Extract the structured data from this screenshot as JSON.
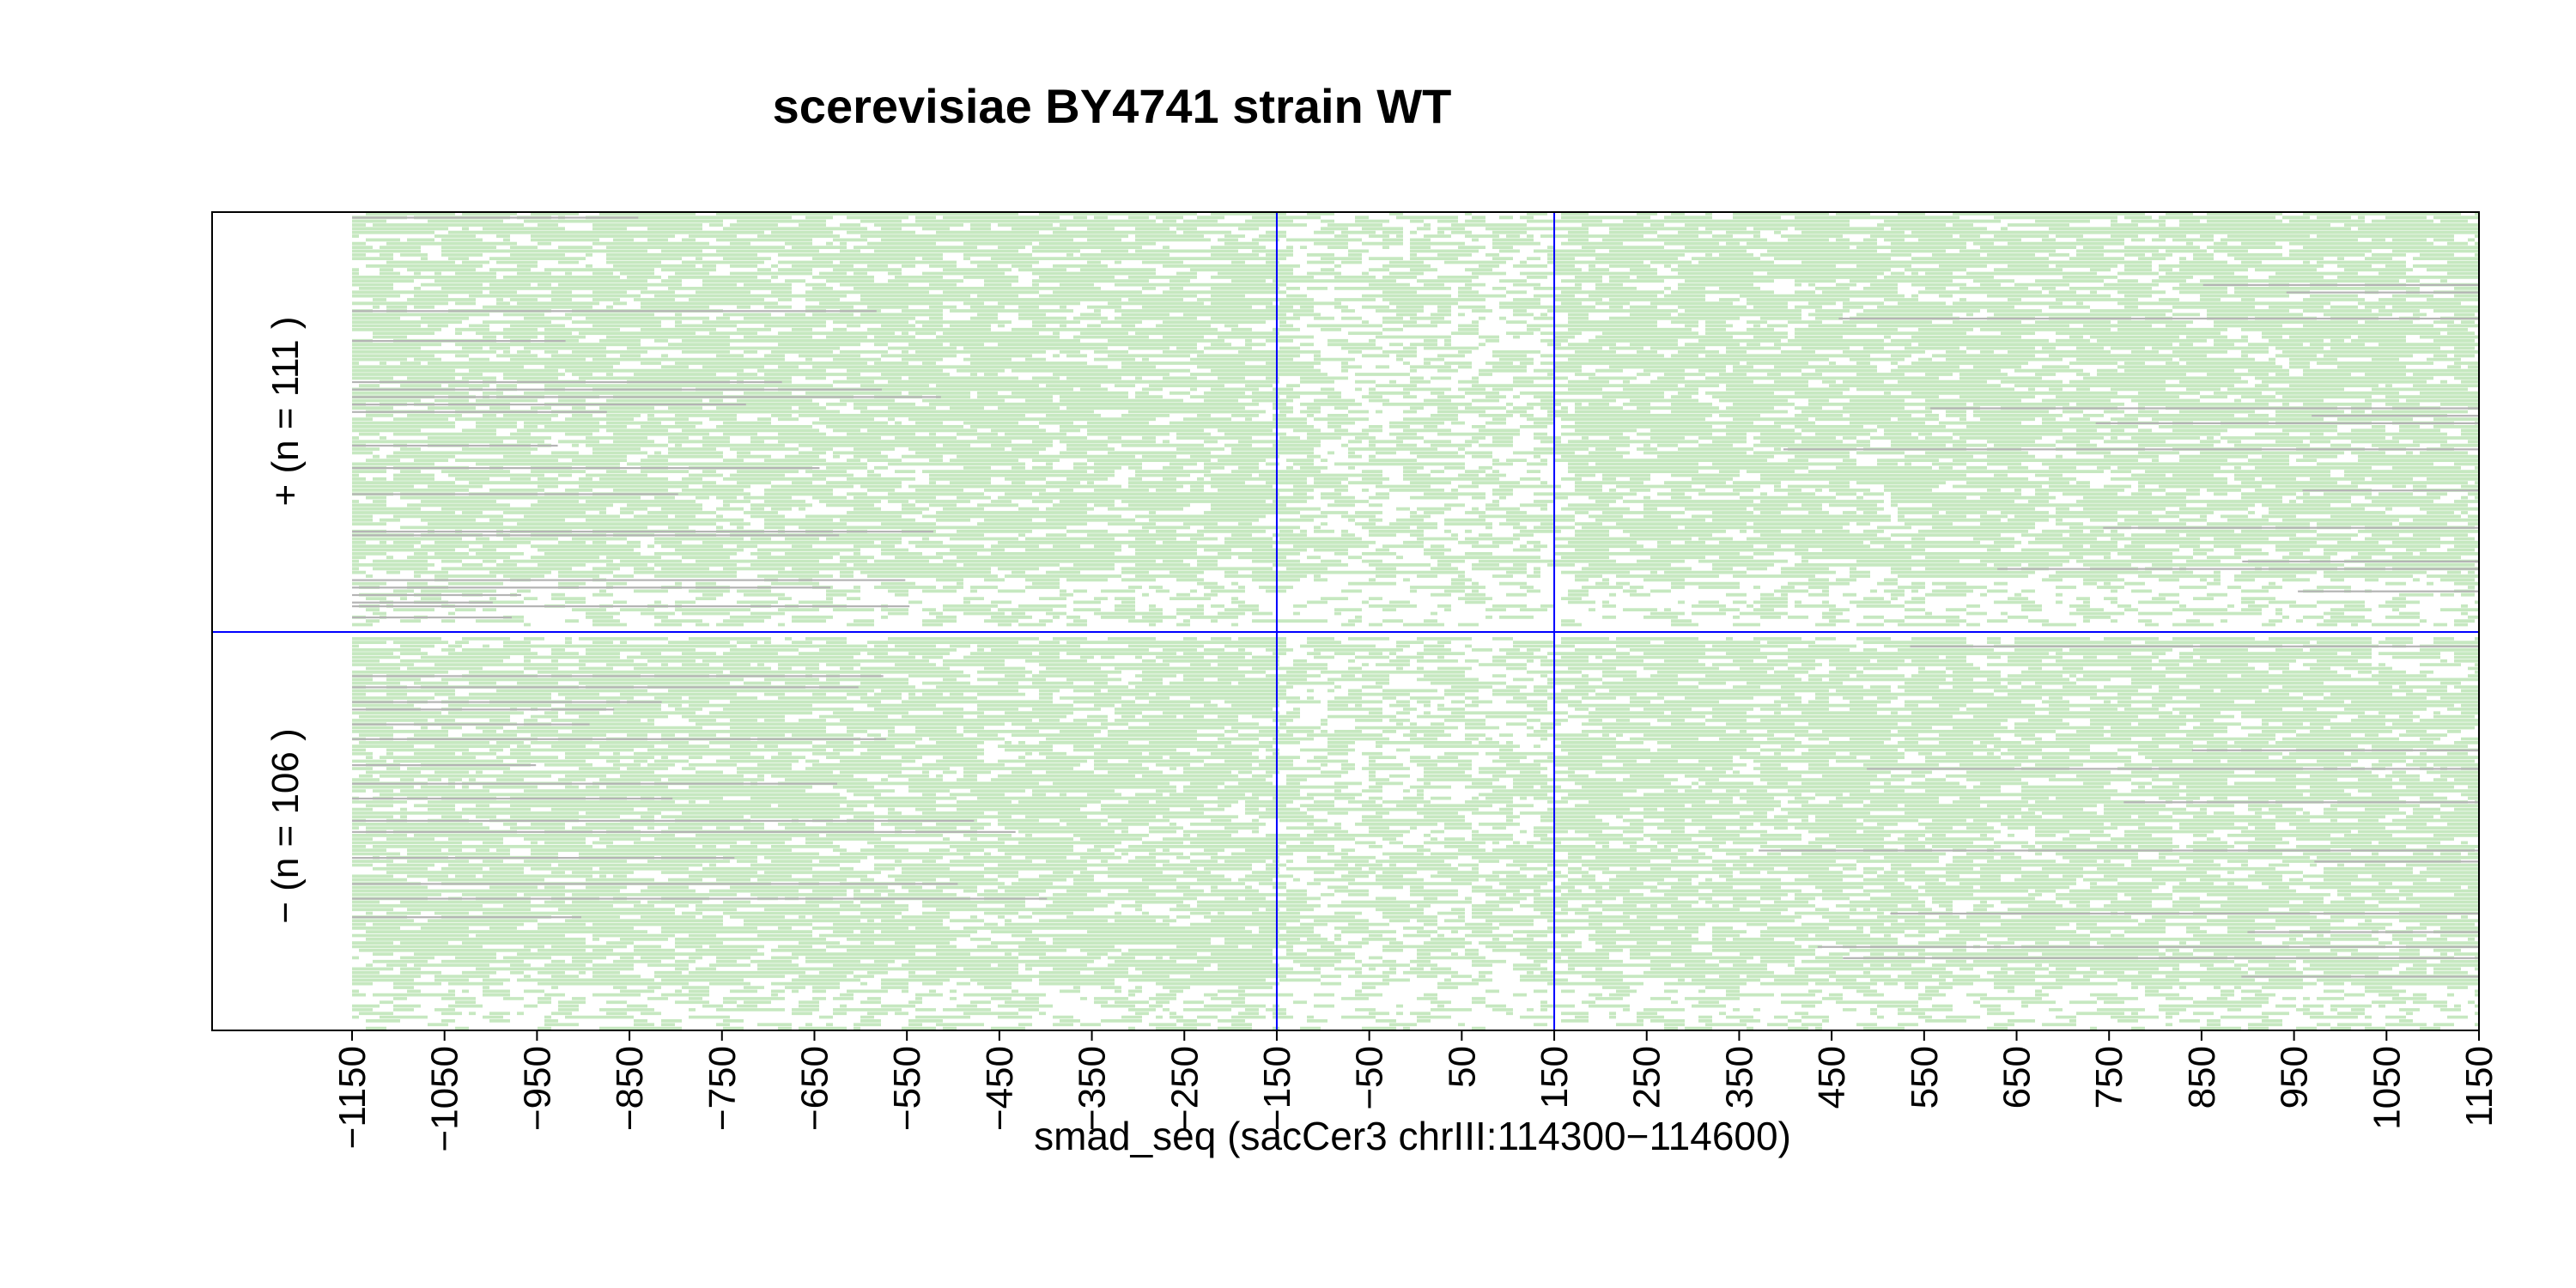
{
  "chart_data": {
    "type": "heatmap",
    "title": "scerevisiae BY4741 strain WT",
    "xlabel": "smad_seq (sacCer3 chrIII:114300−114600)",
    "ylabel": "",
    "xlim": [
      -1150,
      1150
    ],
    "x_ticks": [
      -1150,
      -1050,
      -950,
      -850,
      -750,
      -650,
      -550,
      -450,
      -350,
      -250,
      -150,
      -50,
      50,
      150,
      250,
      350,
      450,
      550,
      650,
      750,
      850,
      950,
      1050,
      1150
    ],
    "x_tick_labels": [
      "−1150",
      "−1050",
      "−950",
      "−850",
      "−750",
      "−650",
      "−550",
      "−450",
      "−350",
      "−250",
      "−150",
      "−50",
      "50",
      "150",
      "250",
      "350",
      "450",
      "550",
      "650",
      "750",
      "850",
      "950",
      "1050",
      "1150"
    ],
    "reference_lines_x": [
      -150,
      150
    ],
    "groups": [
      {
        "label": "+ (n = 111 )",
        "n": 111
      },
      {
        "label": "− (n = 106 )",
        "n": 106
      }
    ],
    "grid": false,
    "legend": "none"
  },
  "colors": {
    "fill": "#c6e8c0",
    "gap": "#b4b4b4",
    "reference_line": "#0000ff",
    "frame": "#000000",
    "background": "#ffffff"
  }
}
